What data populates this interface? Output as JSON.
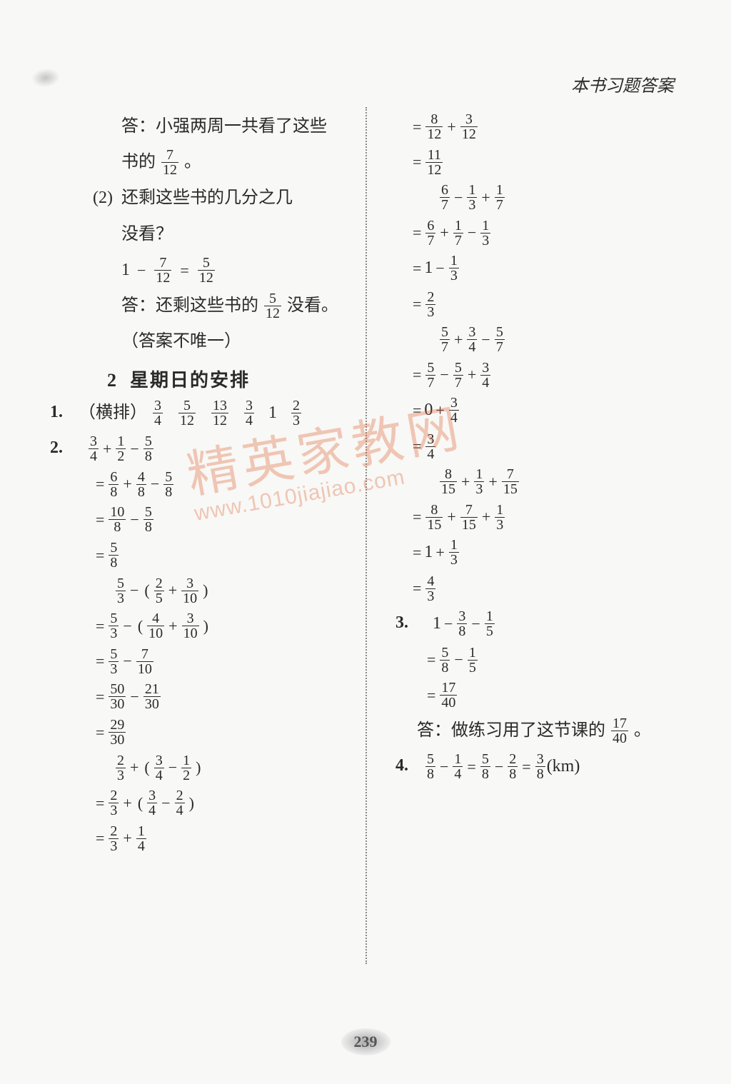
{
  "colors": {
    "background": "#f8f8f6",
    "text": "#2a2a2a",
    "divider": "#888888",
    "watermark": "rgba(220,90,40,0.32)"
  },
  "header": {
    "right": "本书习题答案"
  },
  "page_number": "239",
  "watermark": {
    "text": "精英家教网",
    "url": "www.1010jiajiao.com"
  },
  "left": {
    "ans1_a": "答：小强两周一共看了这些",
    "ans1_b_pre": "书的",
    "ans1_b_n": "7",
    "ans1_b_d": "12",
    "ans1_b_post": "。",
    "q2_label": "(2)",
    "q2_a": "还剩这些书的几分之几",
    "q2_b": "没看？",
    "eq_q2": {
      "lhs_pre": "1",
      "minus": "−",
      "f1n": "7",
      "f1d": "12",
      "eq": "=",
      "f2n": "5",
      "f2d": "12"
    },
    "ans2_pre": "答：还剩这些书的",
    "ans2_n": "5",
    "ans2_d": "12",
    "ans2_post": "没看。",
    "note": "（答案不唯一）",
    "sub_num": "2",
    "sub_title": "星期日的安排",
    "row1_label": "1.",
    "row1_pre": "（横排）",
    "row1_f": [
      [
        "3",
        "4"
      ],
      [
        "5",
        "12"
      ],
      [
        "13",
        "12"
      ],
      [
        "3",
        "4"
      ]
    ],
    "row1_mid": "1",
    "row1_last": [
      "2",
      "3"
    ],
    "p2_label": "2.",
    "p2a": [
      [
        "3",
        "4"
      ],
      "+",
      [
        "1",
        "2"
      ],
      "−",
      [
        "5",
        "8"
      ]
    ],
    "p2b": [
      "=",
      [
        "6",
        "8"
      ],
      "+",
      [
        "4",
        "8"
      ],
      "−",
      [
        "5",
        "8"
      ]
    ],
    "p2c": [
      "=",
      [
        "10",
        "8"
      ],
      "−",
      [
        "5",
        "8"
      ]
    ],
    "p2d": [
      "=",
      [
        "5",
        "8"
      ]
    ],
    "p2e": [
      [
        "5",
        "3"
      ],
      "−",
      "(",
      [
        "2",
        "5"
      ],
      "+",
      [
        "3",
        "10"
      ],
      ")"
    ],
    "p2f": [
      "=",
      [
        "5",
        "3"
      ],
      "−",
      "(",
      [
        "4",
        "10"
      ],
      "+",
      [
        "3",
        "10"
      ],
      ")"
    ],
    "p2g": [
      "=",
      [
        "5",
        "3"
      ],
      "−",
      [
        "7",
        "10"
      ]
    ],
    "p2h": [
      "=",
      [
        "50",
        "30"
      ],
      "−",
      [
        "21",
        "30"
      ]
    ],
    "p2i": [
      "=",
      [
        "29",
        "30"
      ]
    ],
    "p2j": [
      [
        "2",
        "3"
      ],
      "+",
      "(",
      [
        "3",
        "4"
      ],
      "−",
      [
        "1",
        "2"
      ],
      ")"
    ],
    "p2k": [
      "=",
      [
        "2",
        "3"
      ],
      "+",
      "(",
      [
        "3",
        "4"
      ],
      "−",
      [
        "2",
        "4"
      ],
      ")"
    ],
    "p2l": [
      "=",
      [
        "2",
        "3"
      ],
      "+",
      [
        "1",
        "4"
      ]
    ]
  },
  "right": {
    "r1": [
      "=",
      [
        "8",
        "12"
      ],
      "+",
      [
        "3",
        "12"
      ]
    ],
    "r2": [
      "=",
      [
        "11",
        "12"
      ]
    ],
    "r3": [
      [
        "6",
        "7"
      ],
      "−",
      [
        "1",
        "3"
      ],
      "+",
      [
        "1",
        "7"
      ]
    ],
    "r4": [
      "=",
      [
        "6",
        "7"
      ],
      "+",
      [
        "1",
        "7"
      ],
      "−",
      [
        "1",
        "3"
      ]
    ],
    "r5": [
      "=",
      "1",
      "−",
      [
        "1",
        "3"
      ]
    ],
    "r6": [
      "=",
      [
        "2",
        "3"
      ]
    ],
    "r7": [
      [
        "5",
        "7"
      ],
      "+",
      [
        "3",
        "4"
      ],
      "−",
      [
        "5",
        "7"
      ]
    ],
    "r8": [
      "=",
      [
        "5",
        "7"
      ],
      "−",
      [
        "5",
        "7"
      ],
      "+",
      [
        "3",
        "4"
      ]
    ],
    "r9": [
      "=",
      "0",
      "+",
      [
        "3",
        "4"
      ]
    ],
    "r10": [
      "=",
      [
        "3",
        "4"
      ]
    ],
    "r11": [
      [
        "8",
        "15"
      ],
      "+",
      [
        "1",
        "3"
      ],
      "+",
      [
        "7",
        "15"
      ]
    ],
    "r12": [
      "=",
      [
        "8",
        "15"
      ],
      "+",
      [
        "7",
        "15"
      ],
      "+",
      [
        "1",
        "3"
      ]
    ],
    "r13": [
      "=",
      "1",
      "+",
      [
        "1",
        "3"
      ]
    ],
    "r14": [
      "=",
      [
        "4",
        "3"
      ]
    ],
    "p3_label": "3.",
    "p3a": [
      "1",
      "−",
      [
        "3",
        "8"
      ],
      "−",
      [
        "1",
        "5"
      ]
    ],
    "p3b": [
      "=",
      [
        "5",
        "8"
      ],
      "−",
      [
        "1",
        "5"
      ]
    ],
    "p3c": [
      "=",
      [
        "17",
        "40"
      ]
    ],
    "ans3_pre": "答：做练习用了这节课的",
    "ans3_n": "17",
    "ans3_d": "40",
    "ans3_post": "。",
    "p4_label": "4.",
    "p4": [
      [
        "5",
        "8"
      ],
      "−",
      [
        "1",
        "4"
      ],
      "=",
      [
        "5",
        "8"
      ],
      "−",
      [
        "2",
        "8"
      ],
      "=",
      [
        "3",
        "8"
      ],
      "(km)"
    ]
  }
}
